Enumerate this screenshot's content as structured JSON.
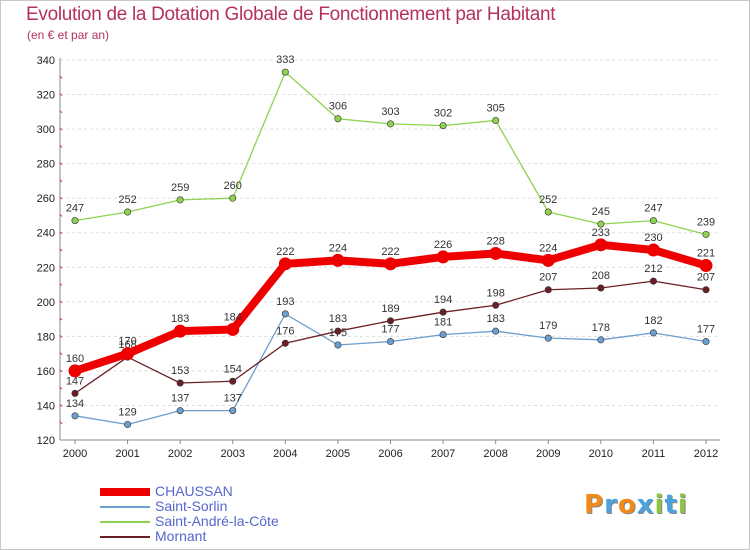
{
  "title": "Evolution de la Dotation Globale de Fonctionnement par Habitant",
  "subtitle": "(en € et par an)",
  "logo": {
    "text": "Proxiti",
    "colors": [
      "#f28a1a",
      "#4aa3df",
      "#f28a1a",
      "#4aa3df",
      "#8cc63f",
      "#4aa3df",
      "#8cc63f"
    ]
  },
  "chart_data": {
    "type": "line",
    "title": "Evolution de la Dotation Globale de Fonctionnement par Habitant",
    "subtitle": "(en € et par an)",
    "xlabel": "",
    "ylabel": "",
    "categories": [
      "2000",
      "2001",
      "2002",
      "2003",
      "2004",
      "2005",
      "2006",
      "2007",
      "2008",
      "2009",
      "2010",
      "2011",
      "2012"
    ],
    "ylim": [
      120,
      340
    ],
    "yticks": [
      120,
      140,
      160,
      180,
      200,
      220,
      240,
      260,
      280,
      300,
      320,
      340
    ],
    "grid": "horizontal dashed",
    "legend_position": "bottom-left",
    "series": [
      {
        "name": "Saint-André-la-Côte",
        "color": "#8ed34f",
        "values": [
          247,
          252,
          259,
          260,
          333,
          306,
          303,
          302,
          305,
          252,
          245,
          247,
          239
        ]
      },
      {
        "name": "Saint-Sorlin",
        "color": "#6a9fcf",
        "values": [
          134,
          129,
          137,
          137,
          193,
          175,
          177,
          181,
          183,
          179,
          178,
          182,
          177
        ]
      },
      {
        "name": "Mornant",
        "color": "#6b1f24",
        "values": [
          147,
          168,
          153,
          154,
          176,
          183,
          189,
          194,
          198,
          207,
          208,
          212,
          207
        ]
      },
      {
        "name": "CHAUSSAN",
        "color": "#ee0000",
        "values": [
          160,
          170,
          183,
          184,
          222,
          224,
          222,
          226,
          228,
          224,
          233,
          230,
          221
        ]
      }
    ],
    "legend_order": [
      "CHAUSSAN",
      "Saint-Sorlin",
      "Saint-André-la-Côte",
      "Mornant"
    ]
  }
}
